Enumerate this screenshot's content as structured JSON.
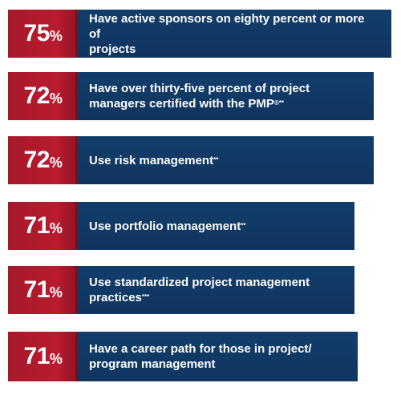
{
  "stats": [
    {
      "percent": "75",
      "suffix": "%",
      "line1": "Have active sponsors on eighty percent or more of",
      "line2": "projects",
      "mark": ""
    },
    {
      "percent": "72",
      "suffix": "%",
      "line1": "Have over thirty-five percent of project",
      "line2": "managers certified with the PMP",
      "mark": "®**"
    },
    {
      "percent": "72",
      "suffix": "%",
      "line1": "Use risk management",
      "line2": "",
      "mark": "**"
    },
    {
      "percent": "71",
      "suffix": "%",
      "line1": "Use portfolio management",
      "line2": "",
      "mark": "**"
    },
    {
      "percent": "71",
      "suffix": "%",
      "line1": "Use standardized project management",
      "line2": "practices",
      "mark": "***"
    },
    {
      "percent": "71",
      "suffix": "%",
      "line1": "Have a career path for those in project/",
      "line2": "program management",
      "mark": ""
    }
  ],
  "colors": {
    "red": "#b81c2f",
    "navy": "#123d6b"
  }
}
